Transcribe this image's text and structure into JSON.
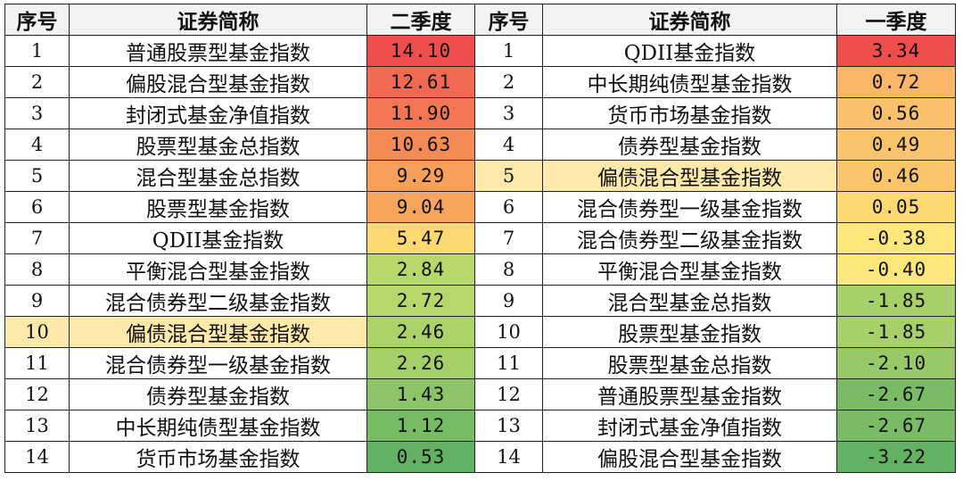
{
  "headers": [
    "序号",
    "证券简称",
    "二季度",
    "序号",
    "证券简称",
    "一季度"
  ],
  "highlight_color": "#fde9a9",
  "rows": [
    {
      "q2_rank": "1",
      "q2_name": "普通股票型基金指数",
      "q2_value": "14.10",
      "q2_color": "#ee4e4c",
      "q1_rank": "1",
      "q1_name": "QDII基金指数",
      "q1_value": "3.34",
      "q1_color": "#ee4e4c"
    },
    {
      "q2_rank": "2",
      "q2_name": "偏股混合型基金指数",
      "q2_value": "12.61",
      "q2_color": "#f06950",
      "q1_rank": "2",
      "q1_name": "中长期纯债型基金指数",
      "q1_value": "0.72",
      "q1_color": "#f9b568"
    },
    {
      "q2_rank": "3",
      "q2_name": "封闭式基金净值指数",
      "q2_value": "11.90",
      "q2_color": "#f27652",
      "q1_rank": "3",
      "q1_name": "货币市场基金指数",
      "q1_value": "0.56",
      "q1_color": "#fac06b"
    },
    {
      "q2_rank": "4",
      "q2_name": "股票型基金总指数",
      "q2_value": "10.63",
      "q2_color": "#f48a56",
      "q1_rank": "4",
      "q1_name": "债券型基金指数",
      "q1_value": "0.49",
      "q1_color": "#fbc46c"
    },
    {
      "q2_rank": "5",
      "q2_name": "混合型基金总指数",
      "q2_value": "9.29",
      "q2_color": "#f6a05b",
      "q1_rank": "5",
      "q1_name": "偏债混合型基金指数",
      "q1_value": "0.46",
      "q1_color": "#fbc56d"
    },
    {
      "q2_rank": "6",
      "q2_name": "股票型基金指数",
      "q2_value": "9.04",
      "q2_color": "#f7a45c",
      "q1_rank": "6",
      "q1_name": "混合债券型一级基金指数",
      "q1_value": "0.05",
      "q1_color": "#fdd971"
    },
    {
      "q2_rank": "7",
      "q2_name": "QDII基金指数",
      "q2_value": "5.47",
      "q2_color": "#fdd971",
      "q1_rank": "7",
      "q1_name": "混合债券型二级基金指数",
      "q1_value": "-0.38",
      "q1_color": "#fde77a"
    },
    {
      "q2_rank": "8",
      "q2_name": "平衡混合型基金指数",
      "q2_value": "2.84",
      "q2_color": "#b8d86b",
      "q1_rank": "8",
      "q1_name": "平衡混合型基金指数",
      "q1_value": "-0.40",
      "q1_color": "#fde77a"
    },
    {
      "q2_rank": "9",
      "q2_name": "混合债券型二级基金指数",
      "q2_value": "2.72",
      "q2_color": "#b5d76b",
      "q1_rank": "9",
      "q1_name": "混合型基金总指数",
      "q1_value": "-1.85",
      "q1_color": "#a7d06a"
    },
    {
      "q2_rank": "10",
      "q2_name": "偏债混合型基金指数",
      "q2_value": "2.46",
      "q2_color": "#acd36a",
      "q1_rank": "10",
      "q1_name": "股票型基金指数",
      "q1_value": "-1.85",
      "q1_color": "#a7d06a"
    },
    {
      "q2_rank": "11",
      "q2_name": "混合债券型一级基金指数",
      "q2_value": "2.26",
      "q2_color": "#a5cf69",
      "q1_rank": "11",
      "q1_name": "股票型基金总指数",
      "q1_value": "-2.10",
      "q1_color": "#98c968"
    },
    {
      "q2_rank": "12",
      "q2_name": "债券型基金指数",
      "q2_value": "1.43",
      "q2_color": "#8cc467",
      "q1_rank": "12",
      "q1_name": "普通股票型基金指数",
      "q1_value": "-2.67",
      "q1_color": "#7abc65"
    },
    {
      "q2_rank": "13",
      "q2_name": "中长期纯债型基金指数",
      "q2_value": "1.12",
      "q2_color": "#78bb65",
      "q1_rank": "13",
      "q1_name": "封闭式基金净值指数",
      "q1_value": "-2.67",
      "q1_color": "#7abc65"
    },
    {
      "q2_rank": "14",
      "q2_name": "货币市场基金指数",
      "q2_value": "0.53",
      "q2_color": "#63b163",
      "q1_rank": "14",
      "q1_name": "偏股混合型基金指数",
      "q1_value": "-3.22",
      "q1_color": "#63b163"
    }
  ],
  "highlighted": {
    "q2_row": 10,
    "q1_row": 5
  }
}
